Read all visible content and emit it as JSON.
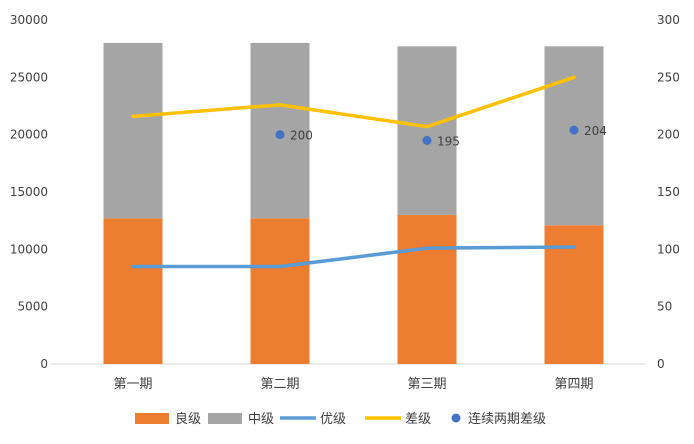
{
  "chart_data": {
    "type": "bar+line",
    "categories": [
      "第一期",
      "第二期",
      "第三期",
      "第四期"
    ],
    "stacked_bars": [
      {
        "name": "良级",
        "color": "#ED7D31",
        "values": [
          12700,
          12700,
          13000,
          12100
        ]
      },
      {
        "name": "中级",
        "color": "#A5A5A5",
        "values": [
          15300,
          15300,
          14700,
          15600
        ]
      }
    ],
    "lines": [
      {
        "name": "优级",
        "color": "#5B9BD5",
        "axis": "left",
        "values": [
          8500,
          8500,
          10100,
          10200
        ]
      },
      {
        "name": "差级",
        "color": "#FFC000",
        "axis": "left",
        "values": [
          21600,
          22600,
          20700,
          25000
        ]
      }
    ],
    "scatter": {
      "name": "连续两期差级",
      "color": "#4472C4",
      "axis": "right",
      "points": [
        {
          "category": "第二期",
          "value": 200,
          "label": "200"
        },
        {
          "category": "第三期",
          "value": 195,
          "label": "195"
        },
        {
          "category": "第四期",
          "value": 204,
          "label": "204"
        }
      ]
    },
    "y_left": {
      "min": 0,
      "max": 30000,
      "ticks": [
        "0",
        "5000",
        "10000",
        "15000",
        "20000",
        "25000",
        "30000"
      ]
    },
    "y_right": {
      "min": 0,
      "max": 300,
      "ticks": [
        "0",
        "50",
        "100",
        "150",
        "200",
        "250",
        "300"
      ]
    },
    "legend_position": "bottom",
    "legend": [
      "良级",
      "中级",
      "优级",
      "差级",
      "连续两期差级"
    ]
  }
}
